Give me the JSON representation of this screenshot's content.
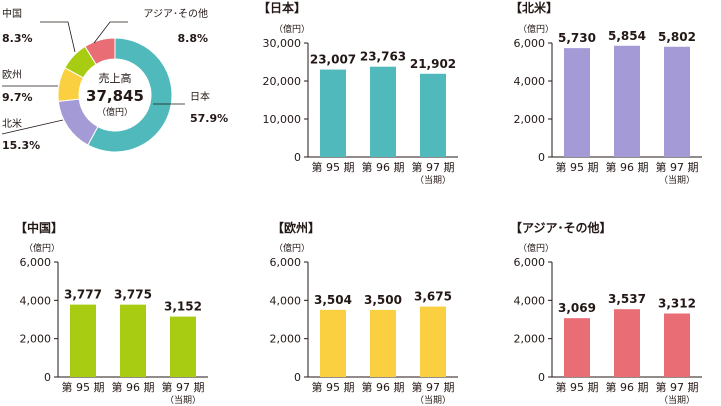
{
  "colors": {
    "japan": "#4fb9bb",
    "north_america": "#a39ad6",
    "china": "#a8cc12",
    "europe": "#fbd040",
    "asia_other": "#e86d74",
    "axis": "#231815",
    "text": "#231815"
  },
  "chart_data": [
    {
      "type": "pie",
      "center_label": "売上高",
      "center_value": "37,845",
      "center_unit": "（億円）",
      "slices": [
        {
          "name": "日本",
          "value": 57.9,
          "label": "57.9%",
          "color_key": "japan",
          "label_side": "right"
        },
        {
          "name": "北米",
          "value": 15.3,
          "label": "15.3%",
          "color_key": "north_america",
          "label_side": "left"
        },
        {
          "name": "欧州",
          "value": 9.7,
          "label": "9.7%",
          "color_key": "europe",
          "label_side": "left"
        },
        {
          "name": "中国",
          "value": 8.3,
          "label": "8.3%",
          "color_key": "china",
          "label_side": "left"
        },
        {
          "name": "アジア･その他",
          "value": 8.8,
          "label": "8.8%",
          "color_key": "asia_other",
          "label_side": "right"
        }
      ]
    },
    {
      "type": "bar",
      "title": "【日本】",
      "ylabel": "（億円）",
      "categories": [
        "第 95 期",
        "第 96 期",
        "第 97 期"
      ],
      "category_notes": [
        "",
        "",
        "（当期）"
      ],
      "values": [
        23007,
        23763,
        21902
      ],
      "value_labels": [
        "23,007",
        "23,763",
        "21,902"
      ],
      "ylim": [
        0,
        30000
      ],
      "yticks": [
        0,
        10000,
        20000,
        30000
      ],
      "ytick_labels": [
        "0",
        "10,000",
        "20,000",
        "30,000"
      ],
      "color_key": "japan"
    },
    {
      "type": "bar",
      "title": "【北米】",
      "ylabel": "（億円）",
      "categories": [
        "第 95 期",
        "第 96 期",
        "第 97 期"
      ],
      "category_notes": [
        "",
        "",
        "（当期）"
      ],
      "values": [
        5730,
        5854,
        5802
      ],
      "value_labels": [
        "5,730",
        "5,854",
        "5,802"
      ],
      "ylim": [
        0,
        6000
      ],
      "yticks": [
        0,
        2000,
        4000,
        6000
      ],
      "ytick_labels": [
        "0",
        "2,000",
        "4,000",
        "6,000"
      ],
      "color_key": "north_america"
    },
    {
      "type": "bar",
      "title": "【中国】",
      "ylabel": "（億円）",
      "categories": [
        "第 95 期",
        "第 96 期",
        "第 97 期"
      ],
      "category_notes": [
        "",
        "",
        "（当期）"
      ],
      "values": [
        3777,
        3775,
        3152
      ],
      "value_labels": [
        "3,777",
        "3,775",
        "3,152"
      ],
      "ylim": [
        0,
        6000
      ],
      "yticks": [
        0,
        2000,
        4000,
        6000
      ],
      "ytick_labels": [
        "0",
        "2,000",
        "4,000",
        "6,000"
      ],
      "color_key": "china"
    },
    {
      "type": "bar",
      "title": "【欧州】",
      "ylabel": "（億円）",
      "categories": [
        "第 95 期",
        "第 96 期",
        "第 97 期"
      ],
      "category_notes": [
        "",
        "",
        "（当期）"
      ],
      "values": [
        3504,
        3500,
        3675
      ],
      "value_labels": [
        "3,504",
        "3,500",
        "3,675"
      ],
      "ylim": [
        0,
        6000
      ],
      "yticks": [
        0,
        2000,
        4000,
        6000
      ],
      "ytick_labels": [
        "0",
        "2,000",
        "4,000",
        "6,000"
      ],
      "color_key": "europe"
    },
    {
      "type": "bar",
      "title": "【アジア･その他】",
      "ylabel": "（億円）",
      "categories": [
        "第 95 期",
        "第 96 期",
        "第 97 期"
      ],
      "category_notes": [
        "",
        "",
        "（当期）"
      ],
      "values": [
        3069,
        3537,
        3312
      ],
      "value_labels": [
        "3,069",
        "3,537",
        "3,312"
      ],
      "ylim": [
        0,
        6000
      ],
      "yticks": [
        0,
        2000,
        4000,
        6000
      ],
      "ytick_labels": [
        "0",
        "2,000",
        "4,000",
        "6,000"
      ],
      "color_key": "asia_other"
    }
  ]
}
